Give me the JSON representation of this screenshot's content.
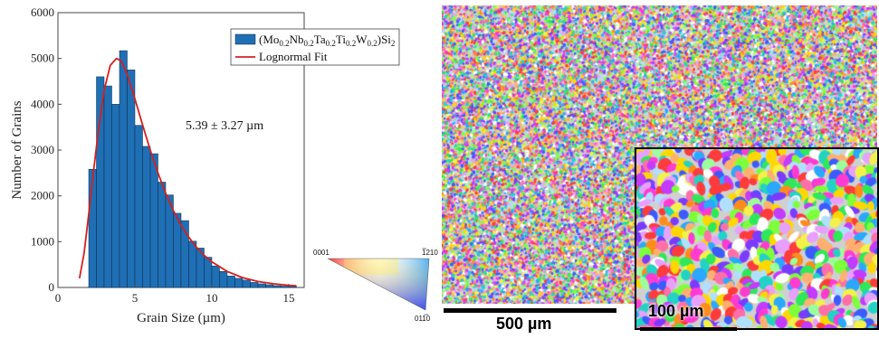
{
  "chart_data": {
    "type": "bar",
    "xlabel": "Grain Size (µm)",
    "ylabel": "Number of Grains",
    "xlim": [
      0,
      16
    ],
    "ylim": [
      0,
      6000
    ],
    "x_ticks": [
      "0",
      "5",
      "10",
      "15"
    ],
    "y_ticks": [
      "0",
      "1000",
      "2000",
      "3000",
      "4000",
      "5000",
      "6000"
    ],
    "bin_width": 0.5,
    "bins_start": [
      2.0,
      2.5,
      3.0,
      3.5,
      4.0,
      4.5,
      5.0,
      5.5,
      6.0,
      6.5,
      7.0,
      7.5,
      8.0,
      8.5,
      9.0,
      9.5,
      10.0,
      10.5,
      11.0,
      11.5,
      12.0,
      12.5,
      13.0,
      13.5,
      14.0,
      14.5,
      15.0
    ],
    "counts": [
      2580,
      4600,
      4400,
      4000,
      5170,
      4750,
      3540,
      3080,
      2920,
      2300,
      2020,
      1620,
      1460,
      1010,
      860,
      660,
      470,
      350,
      250,
      200,
      160,
      110,
      80,
      60,
      40,
      30,
      20
    ],
    "series": [
      {
        "name": "(Mo0.2Nb0.2Ta0.2Ti0.2W0.2)Si2",
        "color": "#1f6fb5"
      },
      {
        "name": "Lognormal Fit",
        "color": "#d42020"
      }
    ],
    "fit": {
      "x": [
        1.4,
        1.7,
        2.0,
        2.3,
        2.6,
        3.0,
        3.4,
        3.8,
        4.1,
        4.5,
        5.0,
        5.5,
        6.0,
        6.5,
        7.0,
        7.5,
        8.0,
        8.5,
        9.0,
        9.5,
        10.0,
        11.0,
        12.0,
        13.0,
        14.0,
        15.0,
        15.5
      ],
      "y": [
        200,
        750,
        1600,
        2500,
        3350,
        4300,
        4850,
        5000,
        4950,
        4650,
        4120,
        3550,
        3000,
        2500,
        2060,
        1680,
        1360,
        1100,
        880,
        700,
        560,
        350,
        215,
        130,
        80,
        48,
        35
      ]
    },
    "legend": {
      "position": "top-right",
      "label_prefix": "(Mo",
      "subscript": "0.2",
      "elements": [
        "Nb",
        "Ta",
        "Ti",
        "W"
      ],
      "suffix": ")Si",
      "suffix_sub": "2",
      "fit_label": "Lognormal Fit"
    },
    "annotation": "5.39 ± 3.27 µm"
  },
  "ipf_key": {
    "corner_top_left": "0001",
    "corner_top_right": "1210",
    "corner_bottom": "0110"
  },
  "ebsd": {
    "scale_main": "500 µm",
    "scale_inset": "100 µm"
  }
}
